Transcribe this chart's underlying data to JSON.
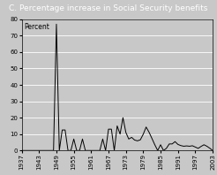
{
  "title": "C. Percentage increase in Social Security benefits",
  "ylabel": "Percent",
  "xlim": [
    1937,
    2003
  ],
  "ylim": [
    0,
    80
  ],
  "yticks": [
    0,
    10,
    20,
    30,
    40,
    50,
    60,
    70,
    80
  ],
  "xticks": [
    1937,
    1943,
    1949,
    1955,
    1961,
    1967,
    1973,
    1979,
    1985,
    1991,
    1997,
    2003
  ],
  "title_bg_color": "#8c8c8c",
  "title_text_color": "#ffffff",
  "plot_bg_color": "#c8c8c8",
  "outer_bg_color": "#c8c8c8",
  "grid_color": "#ffffff",
  "line_color": "#000000",
  "title_fontsize": 6.5,
  "label_fontsize": 5.5,
  "tick_fontsize": 5.0,
  "years": [
    1937,
    1938,
    1939,
    1940,
    1941,
    1942,
    1943,
    1944,
    1945,
    1946,
    1947,
    1948,
    1949,
    1950,
    1951,
    1952,
    1953,
    1954,
    1955,
    1956,
    1957,
    1958,
    1959,
    1960,
    1961,
    1962,
    1963,
    1964,
    1965,
    1966,
    1967,
    1968,
    1969,
    1970,
    1971,
    1972,
    1973,
    1974,
    1975,
    1976,
    1977,
    1978,
    1979,
    1980,
    1981,
    1982,
    1983,
    1984,
    1985,
    1986,
    1987,
    1988,
    1989,
    1990,
    1991,
    1992,
    1993,
    1994,
    1995,
    1996,
    1997,
    1998,
    1999,
    2000,
    2001,
    2002,
    2003
  ],
  "values": [
    0,
    0,
    0,
    0,
    0,
    0,
    0,
    0,
    0,
    0,
    0,
    0,
    77,
    0,
    12.5,
    12.5,
    0,
    0,
    7,
    0,
    0,
    7,
    0,
    0,
    0,
    0,
    0,
    0,
    7,
    0,
    13,
    13,
    0,
    15,
    10,
    20,
    11,
    7,
    8,
    6.4,
    5.9,
    6.5,
    9.9,
    14.3,
    11.2,
    7.4,
    3.5,
    0,
    3.5,
    0,
    1.3,
    4.0,
    4.0,
    5.4,
    3.7,
    3.0,
    2.6,
    2.8,
    2.6,
    2.9,
    2.1,
    1.3,
    2.5,
    3.5,
    2.6,
    1.4,
    0
  ]
}
